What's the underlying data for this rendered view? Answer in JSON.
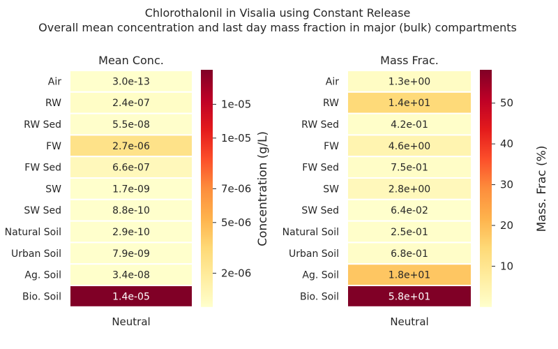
{
  "figure": {
    "title_line1": "Chlorothalonil in Visalia using Constant Release",
    "title_line2": "Overall mean concentration and last day mass fraction in major (bulk) compartments"
  },
  "chart_data": [
    {
      "type": "heatmap",
      "title": "Mean Conc.",
      "xlabel": "",
      "ylabel": "",
      "x_categories": [
        "Neutral"
      ],
      "y_categories": [
        "Air",
        "RW",
        "RW Sed",
        "FW",
        "FW Sed",
        "SW",
        "SW Sed",
        "Natural Soil",
        "Urban Soil",
        "Ag. Soil",
        "Bio. Soil"
      ],
      "values": [
        3e-13,
        2.4e-07,
        5.5e-08,
        2.7e-06,
        6.6e-07,
        1.7e-09,
        8.8e-10,
        2.9e-10,
        7.9e-09,
        3.4e-08,
        1.4e-05
      ],
      "cell_labels": [
        "3.0e-13",
        "2.4e-07",
        "5.5e-08",
        "2.7e-06",
        "6.6e-07",
        "1.7e-09",
        "8.8e-10",
        "2.9e-10",
        "7.9e-09",
        "3.4e-08",
        "1.4e-05"
      ],
      "colorbar": {
        "label": "Concentration (g/L)",
        "range": [
          0,
          1.4e-05
        ],
        "ticks": [
          2e-06,
          5e-06,
          7e-06,
          1e-05,
          1.2e-05
        ],
        "tick_labels": [
          "2e-06",
          "5e-06",
          "7e-06",
          "1e-05",
          "1e-05"
        ]
      },
      "colormap": "YlOrRd"
    },
    {
      "type": "heatmap",
      "title": "Mass Frac.",
      "xlabel": "",
      "ylabel": "",
      "x_categories": [
        "Neutral"
      ],
      "y_categories": [
        "Air",
        "RW",
        "RW Sed",
        "FW",
        "FW Sed",
        "SW",
        "SW Sed",
        "Natural Soil",
        "Urban Soil",
        "Ag. Soil",
        "Bio. Soil"
      ],
      "values": [
        1.3,
        14,
        0.42,
        4.6,
        0.75,
        2.8,
        0.064,
        0.25,
        0.68,
        18,
        58
      ],
      "cell_labels": [
        "1.3e+00",
        "1.4e+01",
        "4.2e-01",
        "4.6e+00",
        "7.5e-01",
        "2.8e+00",
        "6.4e-02",
        "2.5e-01",
        "6.8e-01",
        "1.8e+01",
        "5.8e+01"
      ],
      "colorbar": {
        "label": "Mass. Frac (%)",
        "range": [
          0,
          58
        ],
        "ticks": [
          10,
          20,
          30,
          40,
          50
        ],
        "tick_labels": [
          "10",
          "20",
          "30",
          "40",
          "50"
        ]
      },
      "colormap": "YlOrRd"
    }
  ]
}
